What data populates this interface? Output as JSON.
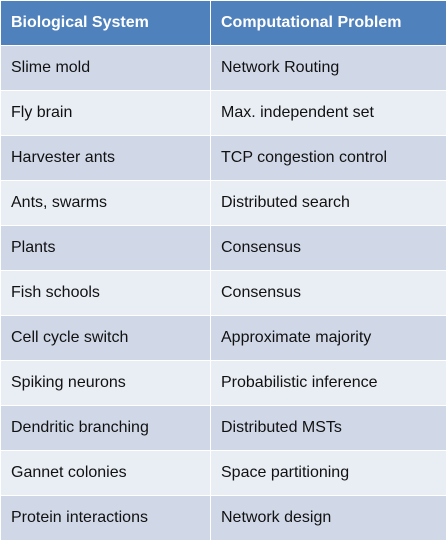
{
  "table": {
    "header": [
      "Biological System",
      "Computational Problem"
    ],
    "rows": [
      [
        "Slime mold",
        "Network Routing"
      ],
      [
        "Fly brain",
        "Max. independent set"
      ],
      [
        "Harvester ants",
        "TCP congestion control"
      ],
      [
        "Ants, swarms",
        "Distributed search"
      ],
      [
        "Plants",
        "Consensus"
      ],
      [
        "Fish schools",
        "Consensus"
      ],
      [
        "Cell cycle switch",
        "Approximate majority"
      ],
      [
        "Spiking neurons",
        "Probabilistic inference"
      ],
      [
        "Dendritic branching",
        "Distributed MSTs"
      ],
      [
        "Gannet colonies",
        "Space partitioning"
      ],
      [
        "Protein interactions",
        "Network design"
      ]
    ]
  }
}
